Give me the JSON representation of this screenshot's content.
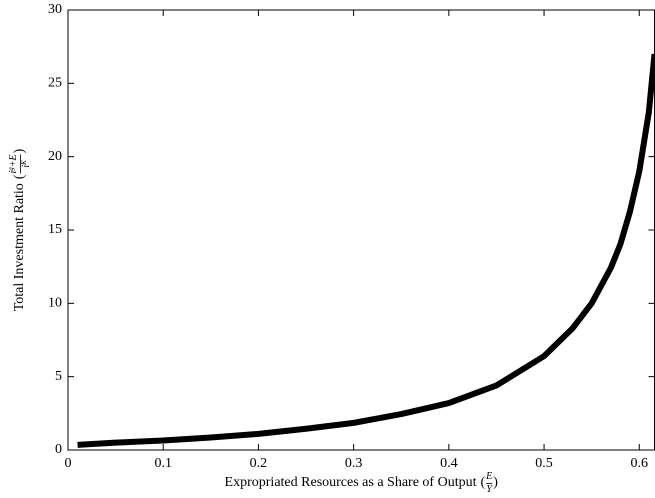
{
  "chart_data": {
    "type": "line",
    "xlabel": {
      "text": "Expropriated Resources as a Share of Output",
      "open": "(",
      "num": [
        {
          "t": "E"
        }
      ],
      "den": [
        {
          "t": "Y"
        }
      ],
      "close": ")"
    },
    "ylabel": {
      "text": "Total Investment Ratio",
      "open": "(",
      "num": [
        {
          "t": "i"
        },
        {
          "t": "g",
          "sup": true
        },
        {
          "t": "+E"
        }
      ],
      "den": [
        {
          "t": "i"
        },
        {
          "t": "K",
          "sup": true
        }
      ],
      "close": ")"
    },
    "x": [
      0.01,
      0.05,
      0.1,
      0.15,
      0.2,
      0.25,
      0.3,
      0.35,
      0.4,
      0.45,
      0.5,
      0.53,
      0.55,
      0.57,
      0.58,
      0.59,
      0.6,
      0.61,
      0.616
    ],
    "series": [
      {
        "name": "Total Investment Ratio",
        "color": "#000000",
        "values": [
          0.35,
          0.5,
          0.65,
          0.85,
          1.1,
          1.45,
          1.85,
          2.45,
          3.2,
          4.4,
          6.4,
          8.3,
          10.0,
          12.4,
          14.0,
          16.2,
          19.0,
          23.0,
          27.0
        ]
      }
    ],
    "xlim": [
      0,
      0.616
    ],
    "ylim": [
      0,
      30
    ],
    "xticks": [
      0,
      0.1,
      0.2,
      0.3,
      0.4,
      0.5,
      0.6
    ],
    "yticks": [
      0,
      5,
      10,
      15,
      20,
      25,
      30
    ],
    "grid": false
  }
}
